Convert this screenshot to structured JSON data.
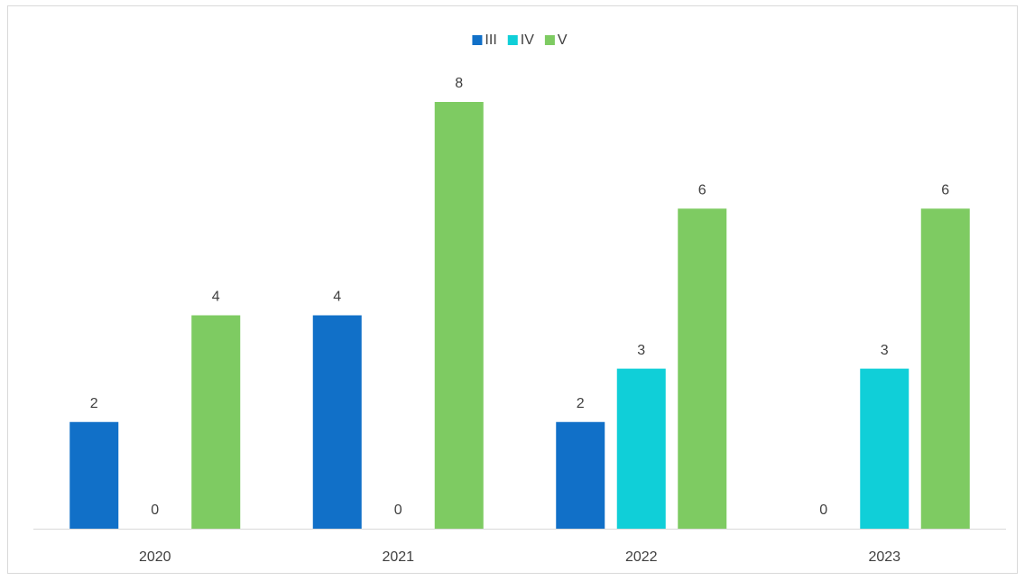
{
  "chart_data": {
    "type": "bar",
    "categories": [
      "2020",
      "2021",
      "2022",
      "2023"
    ],
    "series": [
      {
        "name": "III",
        "color": "#1170c8",
        "values": [
          2,
          4,
          2,
          0
        ]
      },
      {
        "name": "IV",
        "color": "#10cfd8",
        "values": [
          0,
          0,
          3,
          3
        ]
      },
      {
        "name": "V",
        "color": "#7ecb62",
        "values": [
          4,
          8,
          6,
          6
        ]
      }
    ],
    "ylim": [
      0,
      8
    ],
    "legend": "top"
  }
}
